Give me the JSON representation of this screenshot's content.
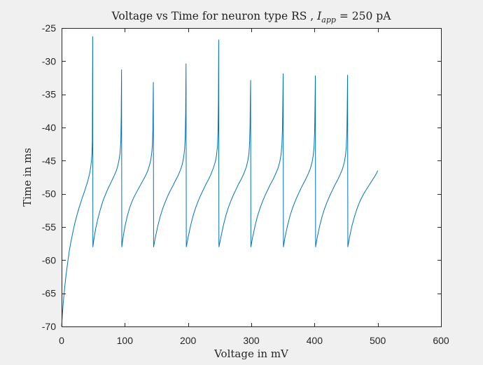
{
  "chart_data": {
    "type": "line",
    "title": {
      "prefix": "Voltage vs Time for neuron type RS , ",
      "var": "I",
      "sub": "app",
      "suffix": " = 250 pA"
    },
    "xlabel": "Voltage in mV",
    "ylabel": "Time in ms",
    "xlim": [
      0,
      600
    ],
    "ylim": [
      -70,
      -25
    ],
    "xticks": [
      0,
      100,
      200,
      300,
      400,
      500,
      600
    ],
    "yticks": [
      -25,
      -30,
      -35,
      -40,
      -45,
      -50,
      -55,
      -60,
      -65,
      -70
    ],
    "grid": false,
    "color": "#0072bd",
    "series": [
      {
        "values": [
          [
            0,
            -70
          ],
          [
            1,
            -68.6
          ],
          [
            2,
            -67.2
          ],
          [
            3,
            -66
          ],
          [
            4,
            -65
          ],
          [
            5,
            -64
          ],
          [
            7,
            -62.3
          ],
          [
            9,
            -60.8
          ],
          [
            12,
            -58.7
          ],
          [
            15,
            -57.1
          ],
          [
            18,
            -55.7
          ],
          [
            21,
            -54.4
          ],
          [
            24,
            -53.3
          ],
          [
            27,
            -52.3
          ],
          [
            30,
            -51.4
          ],
          [
            33,
            -50.5
          ],
          [
            36,
            -49.7
          ],
          [
            39,
            -48.8
          ],
          [
            41,
            -48.2
          ],
          [
            43,
            -47.5
          ],
          [
            45,
            -46.6
          ],
          [
            46,
            -46
          ],
          [
            47,
            -45.2
          ],
          [
            48,
            -44
          ],
          [
            48.6,
            -42.2
          ],
          [
            49.2,
            -26.3
          ],
          [
            49.5,
            -58
          ],
          [
            51,
            -56.9
          ],
          [
            54,
            -55.2
          ],
          [
            57,
            -53.9
          ],
          [
            60,
            -52.8
          ],
          [
            63,
            -51.8
          ],
          [
            66,
            -50.9
          ],
          [
            69,
            -50.2
          ],
          [
            72,
            -49.5
          ],
          [
            75,
            -48.9
          ],
          [
            78,
            -48.3
          ],
          [
            81,
            -47.7
          ],
          [
            84,
            -47.1
          ],
          [
            87,
            -46.4
          ],
          [
            89,
            -45.7
          ],
          [
            91,
            -44.8
          ],
          [
            92.5,
            -43.8
          ],
          [
            93.7,
            -42
          ],
          [
            94.3,
            -38
          ],
          [
            94.8,
            -31.3
          ],
          [
            95.2,
            -58
          ],
          [
            97,
            -56.7
          ],
          [
            100,
            -55
          ],
          [
            104,
            -53.3
          ],
          [
            108,
            -52
          ],
          [
            112,
            -51
          ],
          [
            116,
            -50.2
          ],
          [
            120,
            -49.5
          ],
          [
            124,
            -48.8
          ],
          [
            128,
            -48.1
          ],
          [
            132,
            -47.4
          ],
          [
            136,
            -46.6
          ],
          [
            139,
            -45.7
          ],
          [
            141,
            -44.9
          ],
          [
            142.5,
            -43.9
          ],
          [
            143.6,
            -42.6
          ],
          [
            144.3,
            -40.5
          ],
          [
            144.7,
            -36.5
          ],
          [
            145.1,
            -33.2
          ],
          [
            145.5,
            -58
          ],
          [
            148,
            -56.7
          ],
          [
            152,
            -54.9
          ],
          [
            156,
            -53.4
          ],
          [
            160,
            -52.2
          ],
          [
            164,
            -51.2
          ],
          [
            168,
            -50.3
          ],
          [
            172,
            -49.5
          ],
          [
            176,
            -48.8
          ],
          [
            180,
            -48
          ],
          [
            184,
            -47.3
          ],
          [
            188,
            -46.4
          ],
          [
            191,
            -45.5
          ],
          [
            193,
            -44.5
          ],
          [
            194.5,
            -43.3
          ],
          [
            195.5,
            -41.5
          ],
          [
            196.2,
            -38
          ],
          [
            196.8,
            -30.4
          ],
          [
            197.2,
            -58
          ],
          [
            200,
            -56.6
          ],
          [
            204,
            -54.8
          ],
          [
            208,
            -53.3
          ],
          [
            212,
            -52.1
          ],
          [
            216,
            -51.1
          ],
          [
            220,
            -50.2
          ],
          [
            224,
            -49.4
          ],
          [
            228,
            -48.6
          ],
          [
            232,
            -47.9
          ],
          [
            236,
            -47.1
          ],
          [
            240,
            -46.1
          ],
          [
            243,
            -45.2
          ],
          [
            245,
            -44.2
          ],
          [
            246.5,
            -42.8
          ],
          [
            247.4,
            -40.5
          ],
          [
            248,
            -36
          ],
          [
            248.4,
            -26.8
          ],
          [
            248.8,
            -58
          ],
          [
            252,
            -56.5
          ],
          [
            256,
            -54.7
          ],
          [
            260,
            -53.2
          ],
          [
            264,
            -52
          ],
          [
            268,
            -51
          ],
          [
            272,
            -50.1
          ],
          [
            276,
            -49.3
          ],
          [
            280,
            -48.5
          ],
          [
            284,
            -47.8
          ],
          [
            288,
            -47
          ],
          [
            292,
            -46
          ],
          [
            294.5,
            -45
          ],
          [
            296.3,
            -43.9
          ],
          [
            297.3,
            -42.3
          ],
          [
            298,
            -39.8
          ],
          [
            298.5,
            -35.5
          ],
          [
            298.9,
            -32.9
          ],
          [
            299.3,
            -58
          ],
          [
            302,
            -56.6
          ],
          [
            306,
            -54.8
          ],
          [
            310,
            -53.3
          ],
          [
            314,
            -52.1
          ],
          [
            318,
            -51.1
          ],
          [
            322,
            -50.2
          ],
          [
            326,
            -49.4
          ],
          [
            330,
            -48.6
          ],
          [
            334,
            -47.9
          ],
          [
            338,
            -47.1
          ],
          [
            342,
            -46.2
          ],
          [
            345,
            -45.2
          ],
          [
            347,
            -44.1
          ],
          [
            348.4,
            -42.6
          ],
          [
            349.3,
            -40.2
          ],
          [
            349.9,
            -36
          ],
          [
            350.4,
            -31.9
          ],
          [
            350.8,
            -58
          ],
          [
            353,
            -56.7
          ],
          [
            357,
            -54.9
          ],
          [
            361,
            -53.4
          ],
          [
            365,
            -52.2
          ],
          [
            369,
            -51.2
          ],
          [
            373,
            -50.3
          ],
          [
            377,
            -49.5
          ],
          [
            381,
            -48.7
          ],
          [
            385,
            -48
          ],
          [
            389,
            -47.2
          ],
          [
            393,
            -46.3
          ],
          [
            396,
            -45.3
          ],
          [
            398,
            -44.2
          ],
          [
            399.3,
            -42.8
          ],
          [
            400.2,
            -40.5
          ],
          [
            400.8,
            -36.5
          ],
          [
            401.3,
            -32.2
          ],
          [
            401.7,
            -58
          ],
          [
            404,
            -56.7
          ],
          [
            408,
            -54.9
          ],
          [
            412,
            -53.4
          ],
          [
            416,
            -52.2
          ],
          [
            420,
            -51.2
          ],
          [
            424,
            -50.3
          ],
          [
            428,
            -49.5
          ],
          [
            432,
            -48.7
          ],
          [
            436,
            -48
          ],
          [
            440,
            -47.2
          ],
          [
            444,
            -46.3
          ],
          [
            447,
            -45.3
          ],
          [
            449,
            -44.2
          ],
          [
            450.3,
            -42.8
          ],
          [
            451.2,
            -40.5
          ],
          [
            451.8,
            -36.5
          ],
          [
            452.3,
            -32.1
          ],
          [
            452.7,
            -58
          ],
          [
            455,
            -56.7
          ],
          [
            459,
            -54.9
          ],
          [
            463,
            -53.5
          ],
          [
            467,
            -52.3
          ],
          [
            471,
            -51.3
          ],
          [
            475,
            -50.5
          ],
          [
            479,
            -49.8
          ],
          [
            483,
            -49.2
          ],
          [
            487,
            -48.6
          ],
          [
            491,
            -48
          ],
          [
            495,
            -47.4
          ],
          [
            498,
            -46.9
          ],
          [
            500,
            -46.5
          ]
        ]
      }
    ]
  }
}
